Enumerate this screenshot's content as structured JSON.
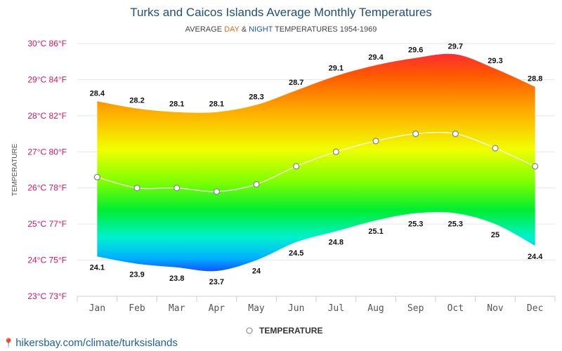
{
  "chart_data": {
    "type": "area",
    "title": "Turks and Caicos Islands Average Monthly Temperatures",
    "subtitle": {
      "prefix": "AVERAGE ",
      "day": "DAY",
      "middle": " & ",
      "night": "NIGHT",
      "suffix": " TEMPERATURES 1954-1969"
    },
    "ylabel": "TEMPERATURE",
    "categories": [
      "Jan",
      "Feb",
      "Mar",
      "Apr",
      "May",
      "Jun",
      "Jul",
      "Aug",
      "Sep",
      "Oct",
      "Nov",
      "Dec"
    ],
    "y_ticks": [
      {
        "value": 23,
        "label": "23°C 73°F"
      },
      {
        "value": 24,
        "label": "24°C 75°F"
      },
      {
        "value": 25,
        "label": "25°C 77°F"
      },
      {
        "value": 26,
        "label": "26°C 78°F"
      },
      {
        "value": 27,
        "label": "27°C 80°F"
      },
      {
        "value": 28,
        "label": "28°C 82°F"
      },
      {
        "value": 29,
        "label": "29°C 84°F"
      },
      {
        "value": 30,
        "label": "30°C 86°F"
      }
    ],
    "ylim": [
      23,
      30
    ],
    "day_values": [
      28.4,
      28.2,
      28.1,
      28.1,
      28.3,
      28.7,
      29.1,
      29.4,
      29.6,
      29.7,
      29.3,
      28.8
    ],
    "night_values": [
      24.1,
      23.9,
      23.8,
      23.7,
      24,
      24.5,
      24.8,
      25.1,
      25.3,
      25.3,
      25,
      24.4
    ],
    "series": [
      {
        "name": "TEMPERATURE",
        "values": [
          26.3,
          26,
          26,
          25.9,
          26.1,
          26.6,
          27,
          27.3,
          27.5,
          27.5,
          27.1,
          26.6
        ]
      }
    ],
    "legend_position": "bottom",
    "grid": true
  },
  "colors": {
    "title": "#1f4e79",
    "tick_label": "#e0115f",
    "day": "#e86c16",
    "night": "#1a56c4",
    "link": "#1b5fae"
  },
  "footer": {
    "icon": "map-pin-icon",
    "text": "hikersbay.com/climate/turksislands"
  }
}
